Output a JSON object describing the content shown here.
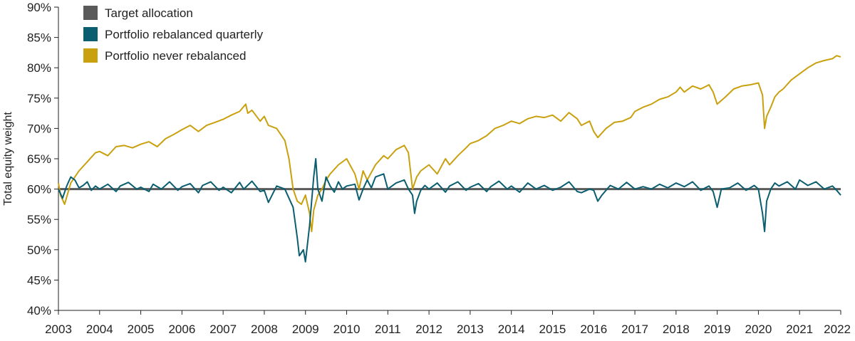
{
  "chart_data": {
    "type": "line",
    "ylabel": "Total equity weight",
    "ylim": [
      0.4,
      0.9
    ],
    "yticks": [
      {
        "value": 0.4,
        "label": "40%"
      },
      {
        "value": 0.45,
        "label": "45%"
      },
      {
        "value": 0.5,
        "label": "50%"
      },
      {
        "value": 0.55,
        "label": "55%"
      },
      {
        "value": 0.6,
        "label": "60%"
      },
      {
        "value": 0.65,
        "label": "65%"
      },
      {
        "value": 0.7,
        "label": "70%"
      },
      {
        "value": 0.75,
        "label": "75%"
      },
      {
        "value": 0.8,
        "label": "80%"
      },
      {
        "value": 0.85,
        "label": "85%"
      },
      {
        "value": 0.9,
        "label": "90%"
      }
    ],
    "xlim": [
      2003.0,
      2022.0
    ],
    "xticks": [
      "2003",
      "2004",
      "2005",
      "2006",
      "2007",
      "2008",
      "2009",
      "2010",
      "2011",
      "2012",
      "2013",
      "2014",
      "2015",
      "2016",
      "2017",
      "2018",
      "2019",
      "2020",
      "2021",
      "2022"
    ],
    "legend_position": "top-left",
    "series": [
      {
        "name": "Target allocation",
        "color": "#5a5a5a",
        "x": [
          2003.0,
          2022.0
        ],
        "y": [
          0.6,
          0.6
        ]
      },
      {
        "name": "Portfolio rebalanced quarterly",
        "color": "#0b5e6f",
        "x": [
          2003.0,
          2003.1,
          2003.2,
          2003.3,
          2003.4,
          2003.5,
          2003.6,
          2003.7,
          2003.8,
          2003.9,
          2004.0,
          2004.2,
          2004.4,
          2004.5,
          2004.7,
          2004.9,
          2005.0,
          2005.2,
          2005.3,
          2005.5,
          2005.7,
          2005.9,
          2006.0,
          2006.2,
          2006.4,
          2006.5,
          2006.7,
          2006.9,
          2007.0,
          2007.2,
          2007.4,
          2007.5,
          2007.7,
          2007.9,
          2008.0,
          2008.1,
          2008.3,
          2008.5,
          2008.6,
          2008.7,
          2008.8,
          2008.85,
          2008.95,
          2009.0,
          2009.1,
          2009.2,
          2009.25,
          2009.3,
          2009.4,
          2009.5,
          2009.6,
          2009.7,
          2009.8,
          2009.9,
          2010.0,
          2010.2,
          2010.3,
          2010.4,
          2010.5,
          2010.6,
          2010.7,
          2010.9,
          2011.0,
          2011.2,
          2011.4,
          2011.5,
          2011.6,
          2011.65,
          2011.7,
          2011.8,
          2011.9,
          2012.0,
          2012.2,
          2012.4,
          2012.5,
          2012.7,
          2012.9,
          2013.0,
          2013.2,
          2013.4,
          2013.5,
          2013.7,
          2013.9,
          2014.0,
          2014.2,
          2014.4,
          2014.6,
          2014.8,
          2015.0,
          2015.2,
          2015.4,
          2015.6,
          2015.7,
          2015.9,
          2016.0,
          2016.1,
          2016.2,
          2016.4,
          2016.6,
          2016.8,
          2017.0,
          2017.2,
          2017.4,
          2017.6,
          2017.8,
          2018.0,
          2018.2,
          2018.4,
          2018.6,
          2018.8,
          2018.9,
          2019.0,
          2019.1,
          2019.3,
          2019.5,
          2019.7,
          2019.9,
          2020.0,
          2020.1,
          2020.15,
          2020.2,
          2020.3,
          2020.4,
          2020.5,
          2020.7,
          2020.9,
          2021.0,
          2021.2,
          2021.4,
          2021.6,
          2021.8,
          2021.9,
          2022.0
        ],
        "y": [
          0.6,
          0.585,
          0.605,
          0.62,
          0.615,
          0.602,
          0.606,
          0.612,
          0.598,
          0.605,
          0.6,
          0.608,
          0.596,
          0.605,
          0.611,
          0.6,
          0.603,
          0.596,
          0.608,
          0.6,
          0.612,
          0.598,
          0.604,
          0.609,
          0.594,
          0.606,
          0.612,
          0.598,
          0.603,
          0.594,
          0.611,
          0.6,
          0.613,
          0.596,
          0.598,
          0.578,
          0.605,
          0.6,
          0.585,
          0.57,
          0.52,
          0.49,
          0.5,
          0.48,
          0.54,
          0.62,
          0.65,
          0.6,
          0.58,
          0.62,
          0.605,
          0.595,
          0.612,
          0.6,
          0.605,
          0.608,
          0.582,
          0.6,
          0.615,
          0.602,
          0.62,
          0.625,
          0.6,
          0.61,
          0.615,
          0.6,
          0.59,
          0.56,
          0.58,
          0.598,
          0.606,
          0.6,
          0.61,
          0.595,
          0.605,
          0.612,
          0.598,
          0.603,
          0.609,
          0.596,
          0.604,
          0.613,
          0.6,
          0.605,
          0.595,
          0.61,
          0.6,
          0.606,
          0.598,
          0.603,
          0.612,
          0.596,
          0.594,
          0.6,
          0.598,
          0.58,
          0.59,
          0.606,
          0.6,
          0.611,
          0.6,
          0.604,
          0.6,
          0.608,
          0.602,
          0.61,
          0.604,
          0.612,
          0.598,
          0.605,
          0.596,
          0.57,
          0.6,
          0.602,
          0.61,
          0.598,
          0.606,
          0.6,
          0.56,
          0.53,
          0.58,
          0.6,
          0.61,
          0.605,
          0.612,
          0.6,
          0.615,
          0.606,
          0.612,
          0.6,
          0.605,
          0.598,
          0.59
        ]
      },
      {
        "name": "Portfolio never rebalanced",
        "color": "#c9a00e",
        "x": [
          2003.0,
          2003.05,
          2003.15,
          2003.3,
          2003.5,
          2003.7,
          2003.9,
          2004.0,
          2004.2,
          2004.4,
          2004.6,
          2004.8,
          2005.0,
          2005.2,
          2005.4,
          2005.6,
          2005.8,
          2006.0,
          2006.2,
          2006.3,
          2006.4,
          2006.6,
          2006.8,
          2007.0,
          2007.2,
          2007.4,
          2007.55,
          2007.6,
          2007.7,
          2007.9,
          2008.0,
          2008.1,
          2008.3,
          2008.5,
          2008.6,
          2008.7,
          2008.8,
          2008.9,
          2009.0,
          2009.1,
          2009.15,
          2009.2,
          2009.3,
          2009.4,
          2009.5,
          2009.6,
          2009.8,
          2010.0,
          2010.2,
          2010.3,
          2010.4,
          2010.5,
          2010.7,
          2010.9,
          2011.0,
          2011.2,
          2011.4,
          2011.5,
          2011.6,
          2011.65,
          2011.7,
          2011.8,
          2012.0,
          2012.2,
          2012.4,
          2012.5,
          2012.7,
          2012.9,
          2013.0,
          2013.2,
          2013.4,
          2013.6,
          2013.8,
          2014.0,
          2014.2,
          2014.4,
          2014.6,
          2014.8,
          2015.0,
          2015.2,
          2015.4,
          2015.6,
          2015.7,
          2015.9,
          2016.0,
          2016.1,
          2016.3,
          2016.5,
          2016.7,
          2016.9,
          2017.0,
          2017.2,
          2017.4,
          2017.6,
          2017.8,
          2018.0,
          2018.1,
          2018.2,
          2018.4,
          2018.6,
          2018.8,
          2018.9,
          2019.0,
          2019.2,
          2019.4,
          2019.6,
          2019.8,
          2020.0,
          2020.1,
          2020.15,
          2020.2,
          2020.3,
          2020.4,
          2020.5,
          2020.6,
          2020.8,
          2021.0,
          2021.2,
          2021.4,
          2021.6,
          2021.8,
          2021.9,
          2022.0
        ],
        "y": [
          0.61,
          0.59,
          0.575,
          0.61,
          0.63,
          0.645,
          0.66,
          0.662,
          0.655,
          0.67,
          0.672,
          0.668,
          0.674,
          0.678,
          0.67,
          0.683,
          0.69,
          0.698,
          0.705,
          0.7,
          0.695,
          0.705,
          0.71,
          0.715,
          0.722,
          0.728,
          0.74,
          0.725,
          0.73,
          0.712,
          0.72,
          0.705,
          0.7,
          0.68,
          0.65,
          0.6,
          0.58,
          0.575,
          0.59,
          0.56,
          0.53,
          0.565,
          0.59,
          0.6,
          0.615,
          0.625,
          0.64,
          0.65,
          0.625,
          0.6,
          0.63,
          0.615,
          0.64,
          0.655,
          0.65,
          0.665,
          0.672,
          0.66,
          0.6,
          0.61,
          0.62,
          0.63,
          0.64,
          0.625,
          0.65,
          0.64,
          0.655,
          0.668,
          0.675,
          0.68,
          0.688,
          0.7,
          0.705,
          0.712,
          0.708,
          0.716,
          0.72,
          0.718,
          0.722,
          0.712,
          0.726,
          0.716,
          0.705,
          0.712,
          0.695,
          0.685,
          0.7,
          0.71,
          0.712,
          0.718,
          0.728,
          0.735,
          0.74,
          0.748,
          0.752,
          0.76,
          0.768,
          0.76,
          0.77,
          0.765,
          0.772,
          0.76,
          0.74,
          0.752,
          0.765,
          0.77,
          0.772,
          0.775,
          0.755,
          0.7,
          0.72,
          0.735,
          0.752,
          0.76,
          0.765,
          0.78,
          0.79,
          0.8,
          0.808,
          0.812,
          0.815,
          0.82,
          0.818
        ]
      }
    ]
  }
}
